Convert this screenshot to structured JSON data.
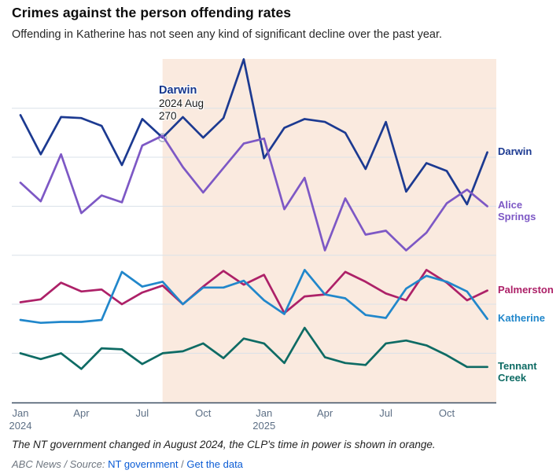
{
  "header": {
    "title": "Crimes against the person offending rates",
    "subtitle": "Offending in Katherine has not seen any kind of significant decline over the past year."
  },
  "chart_data": {
    "type": "line",
    "x_months": [
      "Jan 2024",
      "Feb 2024",
      "Mar 2024",
      "Apr 2024",
      "May 2024",
      "Jun 2024",
      "Jul 2024",
      "Aug 2024",
      "Sep 2024",
      "Oct 2024",
      "Nov 2024",
      "Dec 2024",
      "Jan 2025",
      "Feb 2025",
      "Mar 2025",
      "Apr 2025",
      "May 2025",
      "Jun 2025",
      "Jul 2025",
      "Aug 2025",
      "Sep 2025",
      "Oct 2025",
      "Nov 2025",
      "Dec 2025"
    ],
    "x_ticks": [
      {
        "index": 0,
        "label": "Jan",
        "sub": "2024"
      },
      {
        "index": 3,
        "label": "Apr",
        "sub": ""
      },
      {
        "index": 6,
        "label": "Jul",
        "sub": ""
      },
      {
        "index": 9,
        "label": "Oct",
        "sub": ""
      },
      {
        "index": 12,
        "label": "Jan",
        "sub": "2025"
      },
      {
        "index": 15,
        "label": "Apr",
        "sub": ""
      },
      {
        "index": 18,
        "label": "Jul",
        "sub": ""
      },
      {
        "index": 21,
        "label": "Oct",
        "sub": ""
      }
    ],
    "ylim": [
      0,
      350
    ],
    "gridline_values": [
      50,
      100,
      150,
      200,
      250,
      300
    ],
    "grid": true,
    "legend_position": "right-edge-labels",
    "series": [
      {
        "name": "Darwin",
        "color": "#1c3a91",
        "values": [
          293,
          253,
          291,
          290,
          282,
          242,
          289,
          270,
          291,
          270,
          290,
          350,
          249,
          280,
          289,
          286,
          275,
          238,
          286,
          215,
          244,
          236,
          202,
          255
        ]
      },
      {
        "name": "Alice Springs",
        "color": "#7d58c5",
        "values": [
          224,
          205,
          253,
          193,
          211,
          204,
          262,
          272,
          240,
          214,
          239,
          264,
          269,
          197,
          229,
          155,
          208,
          171,
          175,
          155,
          173,
          203,
          217,
          200
        ]
      },
      {
        "name": "Palmerston",
        "color": "#ad2168",
        "values": [
          102,
          105,
          122,
          113,
          115,
          100,
          112,
          119,
          100,
          118,
          134,
          120,
          130,
          91,
          108,
          110,
          133,
          123,
          111,
          104,
          135,
          122,
          104,
          114
        ]
      },
      {
        "name": "Katherine",
        "color": "#2187cb",
        "values": [
          84,
          81,
          82,
          82,
          84,
          133,
          118,
          123,
          100,
          117,
          117,
          124,
          104,
          90,
          135,
          110,
          106,
          89,
          86,
          116,
          129,
          123,
          113,
          85
        ]
      },
      {
        "name": "Tennant Creek",
        "color": "#0e6b64",
        "values": [
          50,
          44,
          50,
          34,
          55,
          54,
          39,
          50,
          52,
          60,
          45,
          65,
          60,
          40,
          76,
          46,
          40,
          38,
          60,
          63,
          58,
          48,
          36,
          36
        ]
      }
    ],
    "annotation": {
      "series": "Darwin",
      "date_label": "2024 Aug",
      "value_label": "270",
      "month_index": 7,
      "value": 270
    },
    "shaded_region": {
      "start_month_index": 7,
      "color": "#faeadf",
      "meaning": "CLP's time in power"
    },
    "colors": {
      "gridline": "#d9e1e8",
      "axis_line": "#3d4f63",
      "tick_text": "#5d6f85",
      "marker_stroke": "#b3bdc8",
      "marker_fill": "#ffffff"
    }
  },
  "footer": {
    "note": "The NT government changed in August 2024, the CLP's time in power is shown in orange.",
    "credit": "ABC News / Source:",
    "source_link": "NT government",
    "separator": "/",
    "data_link": "Get the data"
  }
}
